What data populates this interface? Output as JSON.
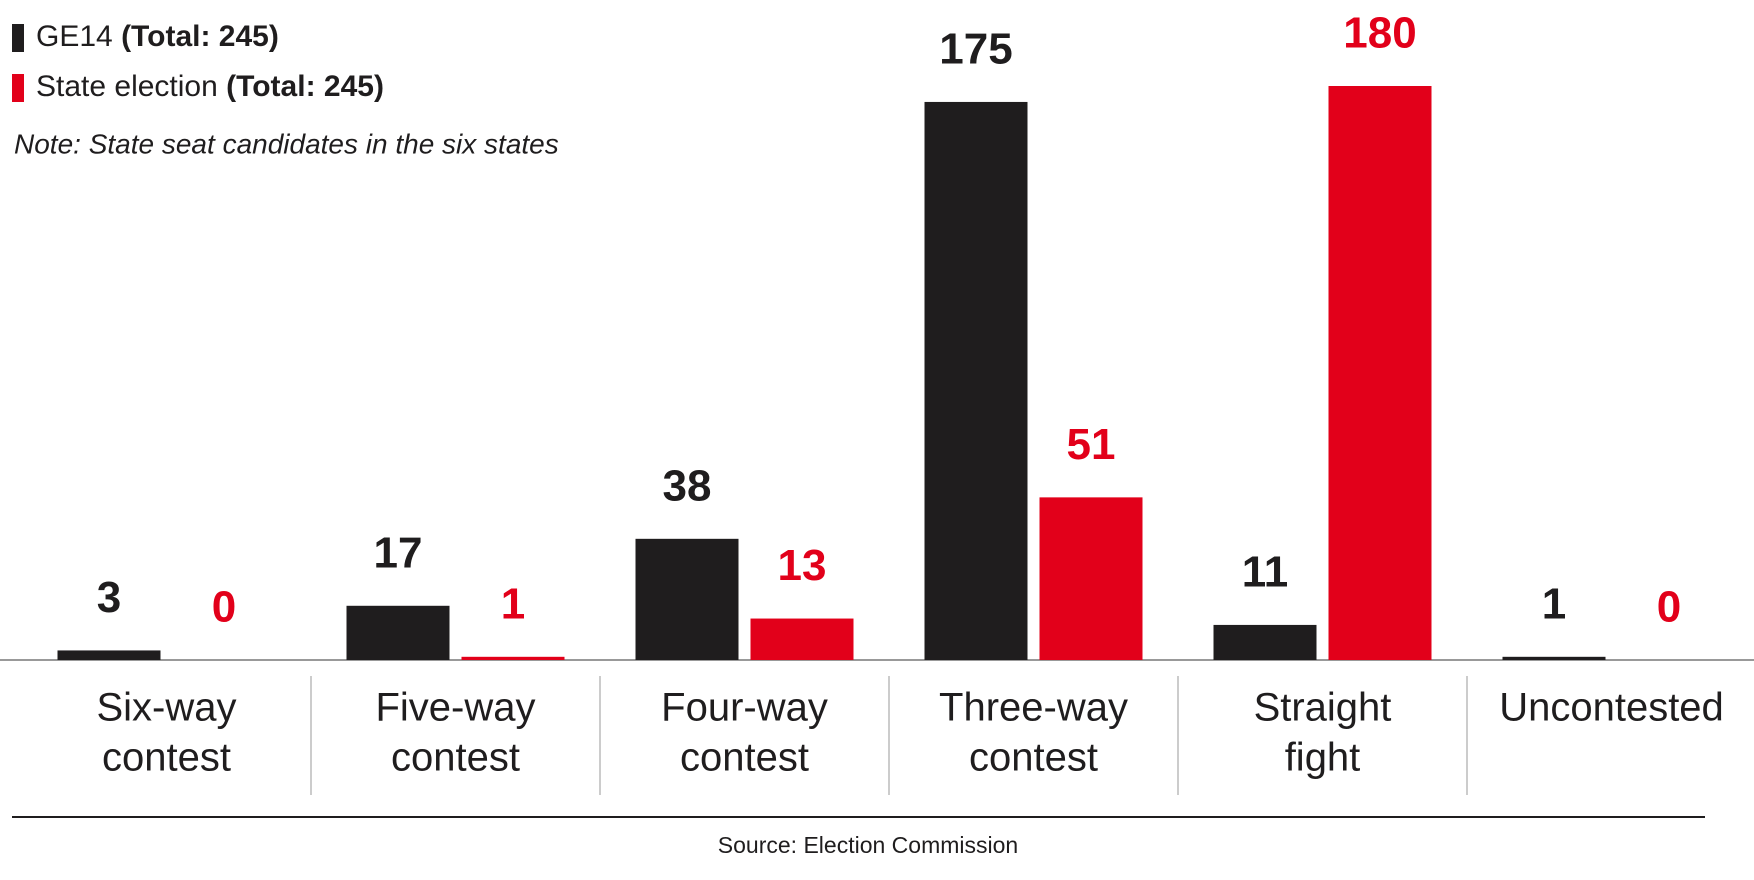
{
  "chart_data": {
    "type": "bar",
    "categories": [
      [
        "Six-way",
        "contest"
      ],
      [
        "Five-way",
        "contest"
      ],
      [
        "Four-way",
        "contest"
      ],
      [
        "Three-way",
        "contest"
      ],
      [
        "Straight",
        "fight"
      ],
      [
        "Uncontested"
      ]
    ],
    "series": [
      {
        "name": "GE14",
        "total_label": "(Total: 245)",
        "color": "#1f1d1e",
        "values": [
          3,
          17,
          38,
          175,
          11,
          1
        ]
      },
      {
        "name": "State election",
        "total_label": "(Total: 245)",
        "color": "#e2001a",
        "values": [
          0,
          1,
          13,
          51,
          180,
          0
        ]
      }
    ],
    "note": "Note: State seat candidates in the six states",
    "source": "Source: Election Commission"
  }
}
